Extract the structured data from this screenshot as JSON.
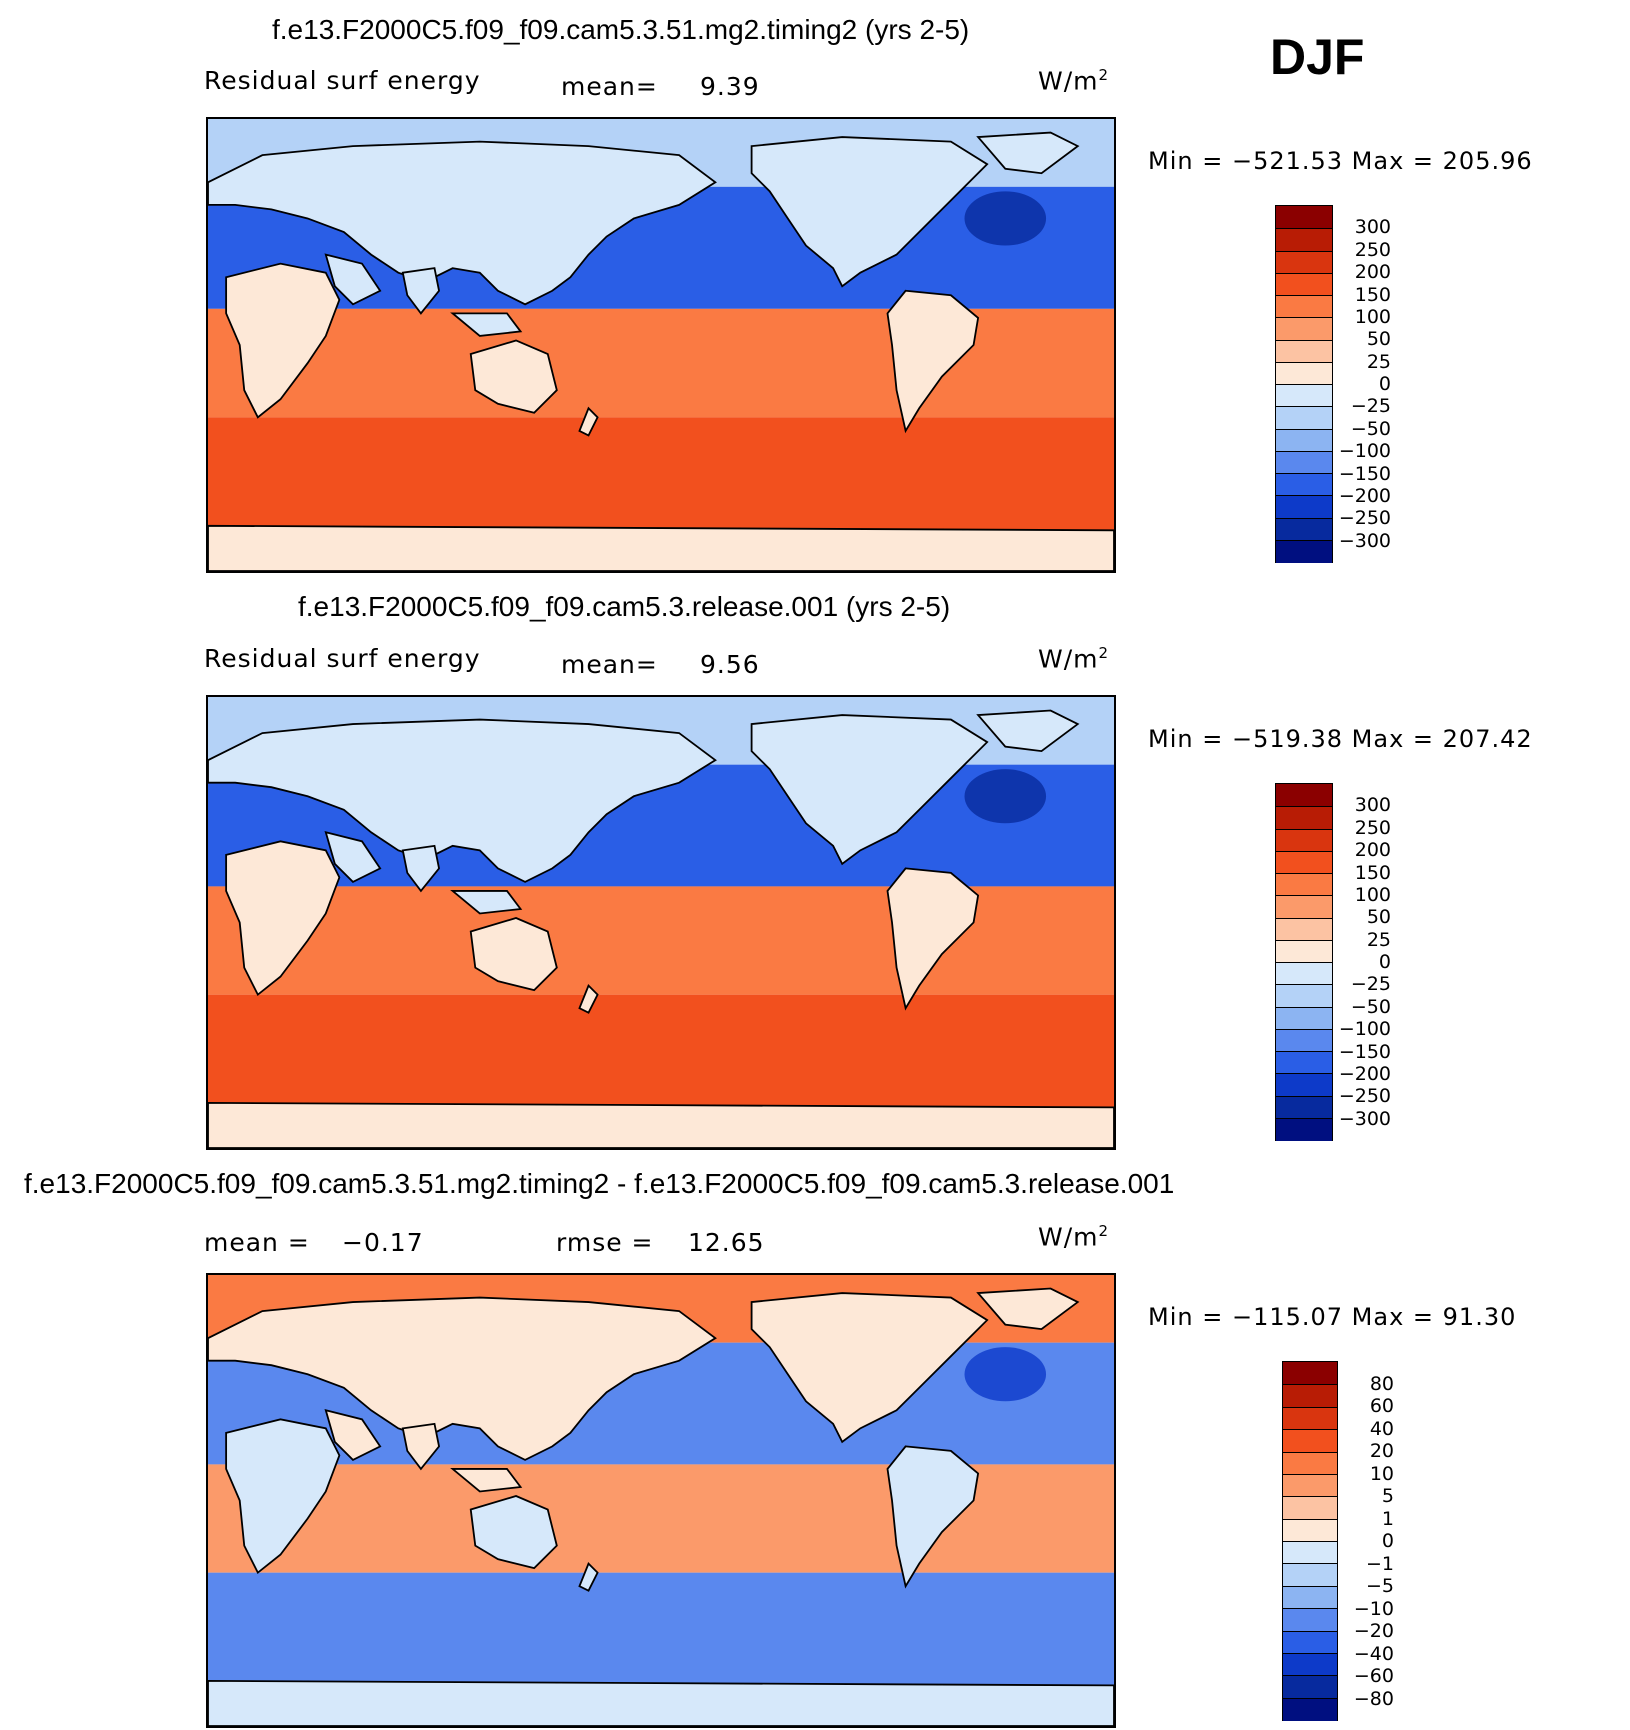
{
  "season": "DJF",
  "panels": [
    {
      "title": "f.e13.F2000C5.f09_f09.cam5.3.51.mg2.timing2 (yrs 2-5)",
      "left_label": "Residual surf energy",
      "mean_label": "mean=",
      "mean_value": "9.39",
      "units": "W/m",
      "units_exp": "2",
      "minmax": "Min = −521.53 Max = 205.96",
      "colorbar": {
        "levels": [
          "300",
          "250",
          "200",
          "150",
          "100",
          "50",
          "25",
          "0",
          "−25",
          "−50",
          "−100",
          "−150",
          "−200",
          "−250",
          "−300"
        ],
        "colors": [
          "#8b0000",
          "#b81c05",
          "#d9350f",
          "#f2501e",
          "#fa7a43",
          "#fb9a6a",
          "#fcc3a3",
          "#fde8d7",
          "#d6e8fa",
          "#b4d2f7",
          "#8cb4f2",
          "#5a88ee",
          "#2a5ee6",
          "#0d3ac9",
          "#072a9e",
          "#000f80"
        ]
      },
      "map_colors": {
        "land": "#d6e8fa",
        "arctic": "#b4d2f7",
        "north_ocean": "#2a5ee6",
        "deep": "#072a9e",
        "tropics": "#fa7a43",
        "south": "#f2501e",
        "antarctica": "#fde8d7",
        "south_land": "#fde8d7"
      }
    },
    {
      "title": "f.e13.F2000C5.f09_f09.cam5.3.release.001 (yrs 2-5)",
      "left_label": "Residual surf energy",
      "mean_label": "mean=",
      "mean_value": "9.56",
      "units": "W/m",
      "units_exp": "2",
      "minmax": "Min = −519.38 Max = 207.42",
      "colorbar": {
        "levels": [
          "300",
          "250",
          "200",
          "150",
          "100",
          "50",
          "25",
          "0",
          "−25",
          "−50",
          "−100",
          "−150",
          "−200",
          "−250",
          "−300"
        ],
        "colors": [
          "#8b0000",
          "#b81c05",
          "#d9350f",
          "#f2501e",
          "#fa7a43",
          "#fb9a6a",
          "#fcc3a3",
          "#fde8d7",
          "#d6e8fa",
          "#b4d2f7",
          "#8cb4f2",
          "#5a88ee",
          "#2a5ee6",
          "#0d3ac9",
          "#072a9e",
          "#000f80"
        ]
      },
      "map_colors": {
        "land": "#d6e8fa",
        "arctic": "#b4d2f7",
        "north_ocean": "#2a5ee6",
        "deep": "#072a9e",
        "tropics": "#fa7a43",
        "south": "#f2501e",
        "antarctica": "#fde8d7",
        "south_land": "#fde8d7"
      }
    },
    {
      "title": "f.e13.F2000C5.f09_f09.cam5.3.51.mg2.timing2 - f.e13.F2000C5.f09_f09.cam5.3.release.001",
      "left_label": "mean =",
      "mean_label": "",
      "mean_value": "−0.17",
      "rmse_label": "rmse =",
      "rmse_value": "12.65",
      "units": "W/m",
      "units_exp": "2",
      "minmax": "Min = −115.07 Max = 91.30",
      "colorbar": {
        "levels": [
          "80",
          "60",
          "40",
          "20",
          "10",
          "5",
          "1",
          "0",
          "−1",
          "−5",
          "−10",
          "−20",
          "−40",
          "−60",
          "−80"
        ],
        "colors": [
          "#8b0000",
          "#b81c05",
          "#d9350f",
          "#f2501e",
          "#fa7a43",
          "#fb9a6a",
          "#fcc3a3",
          "#fde8d7",
          "#d6e8fa",
          "#b4d2f7",
          "#8cb4f2",
          "#5a88ee",
          "#2a5ee6",
          "#0d3ac9",
          "#072a9e",
          "#000f80"
        ]
      },
      "map_colors": {
        "land": "#fde8d7",
        "arctic": "#fa7a43",
        "north_ocean": "#5a88ee",
        "deep": "#0d3ac9",
        "tropics": "#fb9a6a",
        "south": "#5a88ee",
        "antarctica": "#d6e8fa",
        "south_land": "#d6e8fa"
      }
    }
  ]
}
